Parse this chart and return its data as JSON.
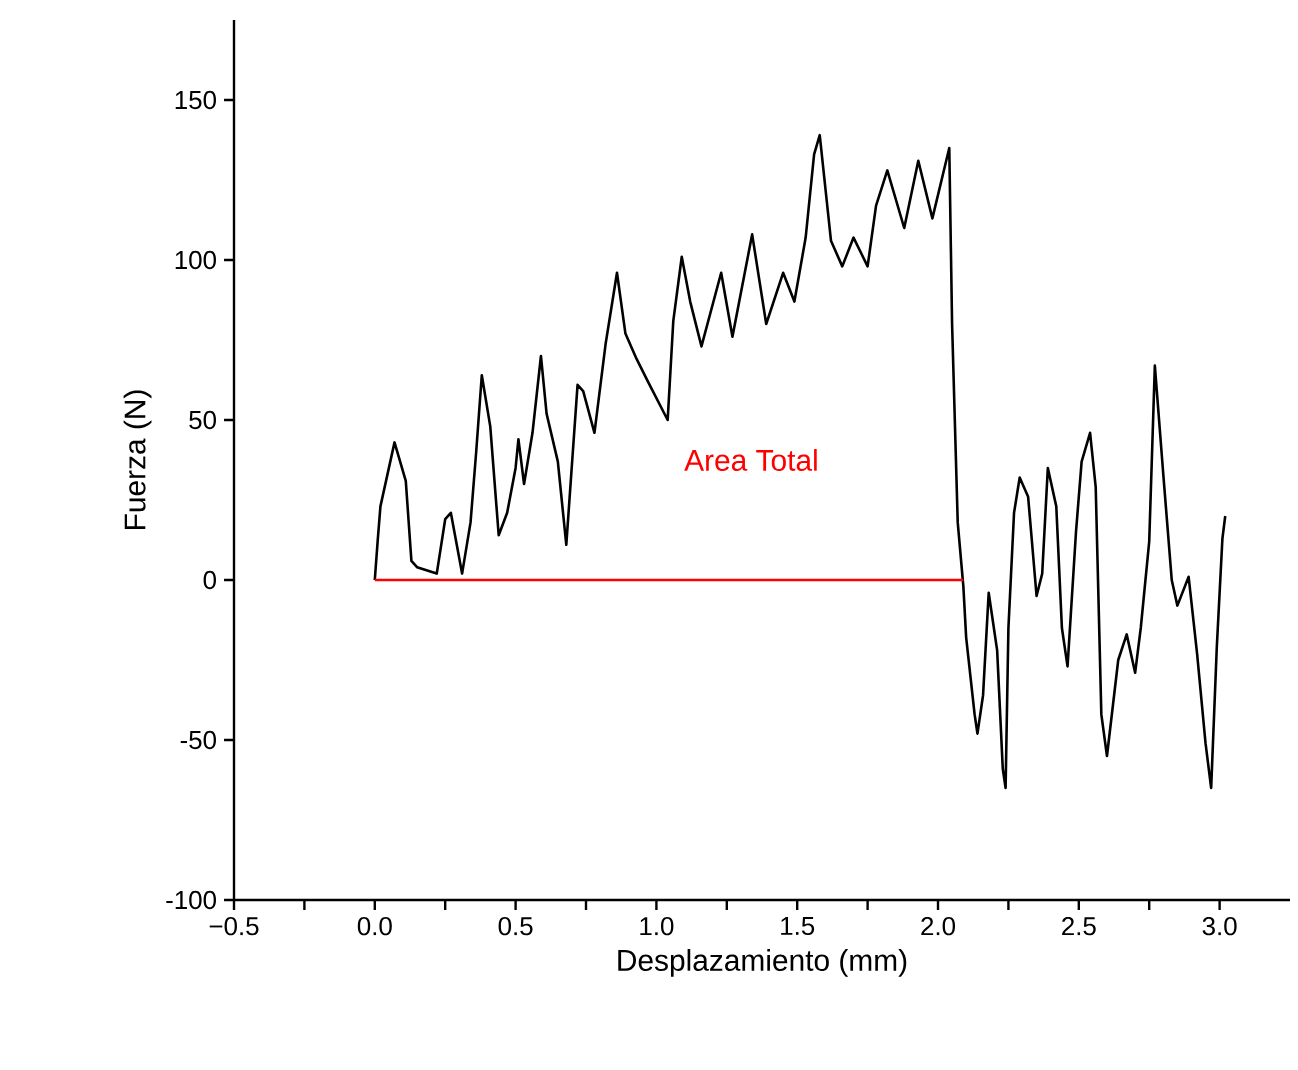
{
  "chart_data": {
    "type": "line",
    "xlabel": "Desplazamiento (mm)",
    "ylabel": "Fuerza (N)",
    "xlim": [
      -0.5,
      3.25
    ],
    "ylim": [
      -100,
      175
    ],
    "xticks": [
      {
        "value": -0.5,
        "label": "−0.5"
      },
      {
        "value": -0.25,
        "label": null
      },
      {
        "value": 0,
        "label": "0.0"
      },
      {
        "value": 0.25,
        "label": null
      },
      {
        "value": 0.5,
        "label": "0.5"
      },
      {
        "value": 0.75,
        "label": null
      },
      {
        "value": 1,
        "label": "1.0"
      },
      {
        "value": 1.25,
        "label": null
      },
      {
        "value": 1.5,
        "label": "1.5"
      },
      {
        "value": 1.75,
        "label": null
      },
      {
        "value": 2,
        "label": "2.0"
      },
      {
        "value": 2.25,
        "label": null
      },
      {
        "value": 2.5,
        "label": "2.5"
      },
      {
        "value": 2.75,
        "label": null
      },
      {
        "value": 3,
        "label": "3.0"
      }
    ],
    "yticks": [
      -100,
      -50,
      0,
      50,
      100,
      150
    ],
    "grid": false,
    "marker": "none",
    "line_style": "solid",
    "annotations": [
      "Area Total"
    ],
    "series": [
      {
        "color": "#000000",
        "x": [
          0,
          0.01,
          0.02,
          0.07,
          0.11,
          0.13,
          0.15,
          0.22,
          0.25,
          0.27,
          0.31,
          0.34,
          0.36,
          0.38,
          0.41,
          0.44,
          0.47,
          0.5,
          0.51,
          0.53,
          0.56,
          0.59,
          0.61,
          0.65,
          0.68,
          0.72,
          0.74,
          0.78,
          0.82,
          0.86,
          0.89,
          0.93,
          0.97,
          1.04,
          1.06,
          1.09,
          1.12,
          1.16,
          1.23,
          1.27,
          1.34,
          1.39,
          1.45,
          1.49,
          1.53,
          1.56,
          1.58,
          1.62,
          1.66,
          1.7,
          1.75,
          1.78,
          1.82,
          1.88,
          1.93,
          1.98,
          2.04,
          2.05,
          2.07,
          2.09,
          2.1,
          2.13,
          2.14,
          2.16,
          2.18,
          2.21,
          2.23,
          2.24,
          2.25,
          2.27,
          2.29,
          2.32,
          2.35,
          2.37,
          2.39,
          2.42,
          2.44,
          2.46,
          2.49,
          2.51,
          2.54,
          2.56,
          2.58,
          2.6,
          2.64,
          2.67,
          2.7,
          2.72,
          2.75,
          2.77,
          2.8,
          2.83,
          2.85,
          2.89,
          2.92,
          2.95,
          2.97,
          2.99,
          3.01,
          3.02
        ],
        "values": [
          0,
          12,
          23,
          43,
          31,
          6,
          4,
          2,
          19,
          21,
          2,
          18,
          40,
          64,
          48,
          14,
          21,
          35,
          44,
          30,
          46,
          70,
          52,
          37,
          11,
          61,
          59,
          46,
          74,
          96,
          77,
          69,
          62,
          50,
          81,
          101,
          87,
          73,
          96,
          76,
          108,
          80,
          96,
          87,
          107,
          133,
          139,
          106,
          98,
          107,
          98,
          117,
          128,
          110,
          131,
          113,
          135,
          80,
          18,
          -2,
          -18,
          -42,
          -48,
          -36,
          -4,
          -22,
          -59,
          -65,
          -15,
          21,
          32,
          26,
          -5,
          2,
          35,
          23,
          -15,
          -27,
          15,
          37,
          46,
          29,
          -42,
          -55,
          -25,
          -17,
          -29,
          -15,
          12,
          67,
          33,
          0,
          -8,
          1,
          -23,
          -51,
          -65,
          -21,
          13,
          20
        ]
      },
      {
        "color": "#ff0000",
        "x": [
          0,
          2.09
        ],
        "values": [
          0,
          0
        ]
      }
    ]
  }
}
